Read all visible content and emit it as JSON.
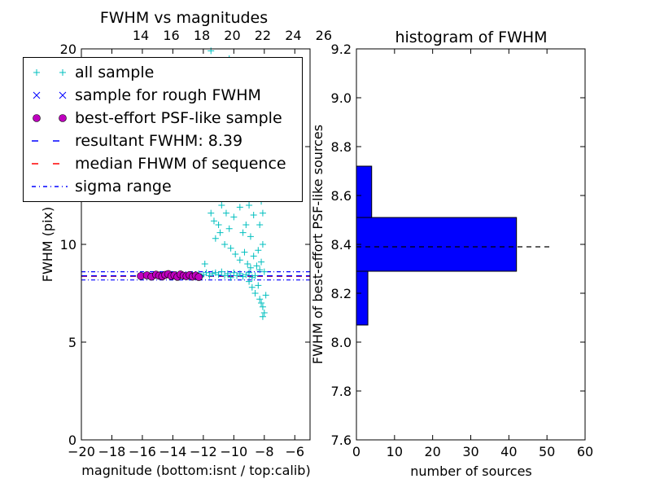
{
  "chart_data": [
    {
      "type": "scatter",
      "title": "FWHM vs magnitudes",
      "xlabel": "magnitude (bottom:isnt / top:calib)",
      "ylabel": "FWHM (pix)",
      "xlim": [
        -20,
        -5
      ],
      "ylim": [
        0,
        20
      ],
      "xticks": [
        -20,
        -18,
        -16,
        -14,
        -12,
        -10,
        -8,
        -6
      ],
      "xtick_labels": [
        "−20",
        "−18",
        "−16",
        "−14",
        "−12",
        "−10",
        "−8",
        "−6"
      ],
      "yticks": [
        0,
        5,
        10,
        15,
        20
      ],
      "ytick_labels": [
        "0",
        "5",
        "10",
        "",
        "20"
      ],
      "top_xticks": [
        14,
        16,
        18,
        20,
        22,
        24,
        26
      ],
      "top_xtick_labels": [
        "14",
        "16",
        "18",
        "20",
        "22",
        "24",
        "26"
      ],
      "top_axis_offset": 30.1,
      "legend_position": "upper-left",
      "legend": [
        {
          "label": "all sample",
          "marker": "+",
          "color": "#00bfbf"
        },
        {
          "label": "sample for rough FWHM",
          "marker": "x",
          "color": "#0000ff"
        },
        {
          "label": "best-effort PSF-like sample",
          "marker": "o",
          "color": "#bf00bf"
        },
        {
          "label": "resultant FWHM: 8.39",
          "line": "dashed",
          "color": "#0000ff"
        },
        {
          "label": "median FHWM of sequence",
          "line": "dashed",
          "color": "#ff0000"
        },
        {
          "label": "sigma range",
          "line": "dashdot",
          "color": "#0000ff"
        }
      ],
      "lines": {
        "resultant_fwhm": 8.39,
        "median_fwhm": 8.37,
        "sigma_low": 8.18,
        "sigma_high": 8.6
      },
      "series": [
        {
          "name": "all sample",
          "points": [
            [
              -12.3,
              8.5
            ],
            [
              -12.0,
              8.45
            ],
            [
              -11.8,
              8.55
            ],
            [
              -11.6,
              8.4
            ],
            [
              -11.4,
              8.5
            ],
            [
              -11.2,
              8.55
            ],
            [
              -11.0,
              8.45
            ],
            [
              -10.8,
              8.6
            ],
            [
              -10.6,
              8.4
            ],
            [
              -10.4,
              8.5
            ],
            [
              -10.2,
              8.3
            ],
            [
              -10.0,
              8.55
            ],
            [
              -9.8,
              8.4
            ],
            [
              -9.6,
              8.5
            ],
            [
              -9.4,
              8.35
            ],
            [
              -9.2,
              8.45
            ],
            [
              -9.0,
              8.55
            ],
            [
              -8.8,
              8.3
            ],
            [
              -8.6,
              8.4
            ],
            [
              -11.9,
              9.0
            ],
            [
              -11.5,
              11.6
            ],
            [
              -11.3,
              11.2
            ],
            [
              -11.0,
              11.0
            ],
            [
              -10.8,
              12.0
            ],
            [
              -10.5,
              11.6
            ],
            [
              -10.3,
              10.8
            ],
            [
              -10.0,
              11.4
            ],
            [
              -9.8,
              12.4
            ],
            [
              -9.6,
              11.9
            ],
            [
              -9.4,
              10.6
            ],
            [
              -9.2,
              11.0
            ],
            [
              -9.0,
              12.0
            ],
            [
              -8.9,
              10.4
            ],
            [
              -8.7,
              11.5
            ],
            [
              -8.5,
              12.4
            ],
            [
              -8.3,
              11.0
            ],
            [
              -8.2,
              12.2
            ],
            [
              -8.1,
              11.6
            ],
            [
              -11.2,
              10.3
            ],
            [
              -10.9,
              10.6
            ],
            [
              -10.6,
              10.0
            ],
            [
              -10.2,
              9.8
            ],
            [
              -9.9,
              9.5
            ],
            [
              -9.6,
              9.2
            ],
            [
              -9.3,
              9.6
            ],
            [
              -9.1,
              9.0
            ],
            [
              -8.9,
              8.8
            ],
            [
              -8.7,
              9.4
            ],
            [
              -8.5,
              8.9
            ],
            [
              -8.4,
              9.7
            ],
            [
              -8.3,
              8.7
            ],
            [
              -8.2,
              9.1
            ],
            [
              -8.1,
              10.0
            ],
            [
              -8.0,
              8.6
            ],
            [
              -9.0,
              8.1
            ],
            [
              -8.8,
              7.8
            ],
            [
              -8.6,
              7.5
            ],
            [
              -8.4,
              7.9
            ],
            [
              -8.3,
              7.2
            ],
            [
              -8.2,
              7.0
            ],
            [
              -8.1,
              6.8
            ],
            [
              -8.0,
              6.5
            ],
            [
              -7.9,
              7.4
            ],
            [
              -8.1,
              6.3
            ],
            [
              -8.0,
              13.6
            ],
            [
              -8.2,
              14.5
            ],
            [
              -8.1,
              15.2
            ],
            [
              -8.3,
              13.0
            ],
            [
              -7.9,
              12.8
            ],
            [
              -10.3,
              19.5
            ],
            [
              -11.5,
              19.9
            ]
          ]
        },
        {
          "name": "best-effort PSF-like sample",
          "points": [
            [
              -16.1,
              8.38
            ],
            [
              -15.7,
              8.42
            ],
            [
              -15.4,
              8.35
            ],
            [
              -15.1,
              8.45
            ],
            [
              -14.9,
              8.4
            ],
            [
              -14.7,
              8.36
            ],
            [
              -14.5,
              8.44
            ],
            [
              -14.3,
              8.48
            ],
            [
              -14.1,
              8.38
            ],
            [
              -13.9,
              8.42
            ],
            [
              -13.7,
              8.34
            ],
            [
              -13.5,
              8.46
            ],
            [
              -13.3,
              8.4
            ],
            [
              -13.1,
              8.37
            ],
            [
              -12.9,
              8.43
            ],
            [
              -12.7,
              8.35
            ],
            [
              -12.5,
              8.41
            ],
            [
              -12.3,
              8.33
            ]
          ]
        }
      ]
    },
    {
      "type": "bar",
      "orientation": "horizontal",
      "title": "histogram of FWHM",
      "xlabel": "number of sources",
      "ylabel": "FWHM of best-effort PSF-like sources",
      "xlim": [
        0,
        60
      ],
      "ylim": [
        7.6,
        9.2
      ],
      "xticks": [
        0,
        10,
        20,
        30,
        40,
        50,
        60
      ],
      "xtick_labels": [
        "0",
        "10",
        "20",
        "30",
        "40",
        "50",
        "60"
      ],
      "yticks": [
        7.6,
        7.8,
        8.0,
        8.2,
        8.4,
        8.6,
        8.8,
        9.0,
        9.2
      ],
      "ytick_labels": [
        "7.6",
        "7.8",
        "8.0",
        "8.2",
        "8.4",
        "8.6",
        "8.8",
        "9.0",
        "9.2"
      ],
      "bars": [
        {
          "y0": 8.07,
          "y1": 8.29,
          "value": 3
        },
        {
          "y0": 8.29,
          "y1": 8.51,
          "value": 42
        },
        {
          "y0": 8.51,
          "y1": 8.72,
          "value": 4
        }
      ],
      "reference_line": {
        "y": 8.39,
        "x_end": 51
      },
      "colors": {
        "bar": "#0000ff"
      }
    }
  ]
}
